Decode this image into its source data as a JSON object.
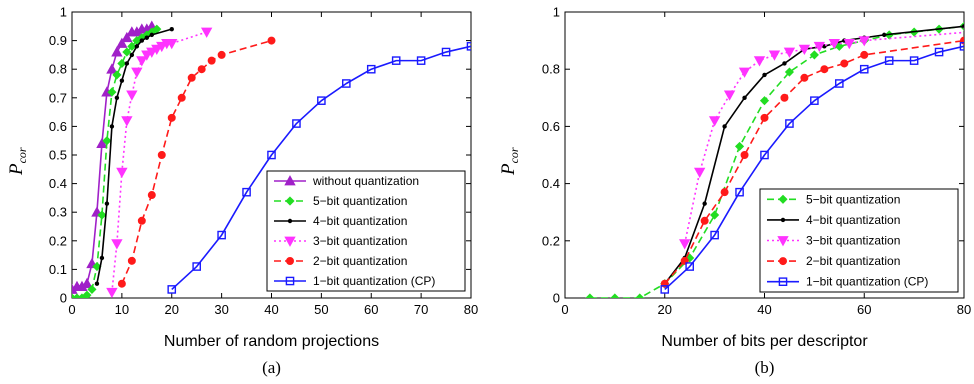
{
  "chart_data": [
    {
      "type": "line",
      "panel_label": "(a)",
      "xlabel": "Number of random projections",
      "ylabel": "P",
      "ylabel_sub": "cor",
      "xlim": [
        0,
        80
      ],
      "ylim": [
        0,
        1
      ],
      "xticks": [
        "0",
        "10",
        "20",
        "30",
        "40",
        "50",
        "60",
        "70",
        "80"
      ],
      "yticks": [
        "0",
        "0.1",
        "0.2",
        "0.3",
        "0.4",
        "0.5",
        "0.6",
        "0.7",
        "0.8",
        "0.9",
        "1"
      ],
      "grid": false,
      "legend_position": "bottom-right",
      "series": [
        {
          "name": "without quantization",
          "color": "#a020c8",
          "dash": "solid",
          "marker": "triangle-up",
          "x": [
            0,
            1,
            2,
            3,
            4,
            5,
            6,
            7,
            8,
            9,
            10,
            11,
            12,
            13,
            14,
            15,
            16
          ],
          "y": [
            0.03,
            0.04,
            0.04,
            0.05,
            0.12,
            0.3,
            0.54,
            0.72,
            0.8,
            0.86,
            0.89,
            0.91,
            0.93,
            0.93,
            0.94,
            0.94,
            0.95
          ]
        },
        {
          "name": "5−bit quantization",
          "color": "#22dd22",
          "dash": "dash",
          "marker": "diamond",
          "x": [
            0,
            1,
            2,
            3,
            4,
            5,
            6,
            7,
            8,
            9,
            10,
            11,
            12,
            13,
            14,
            15,
            16,
            17
          ],
          "y": [
            0.0,
            0.0,
            0.0,
            0.01,
            0.03,
            0.11,
            0.29,
            0.55,
            0.72,
            0.78,
            0.82,
            0.86,
            0.88,
            0.9,
            0.91,
            0.92,
            0.93,
            0.94
          ]
        },
        {
          "name": "4−bit quantization",
          "color": "#000000",
          "dash": "solid",
          "marker": "dot",
          "x": [
            5,
            6,
            7,
            8,
            9,
            10,
            11,
            12,
            13,
            14,
            15,
            16,
            20
          ],
          "y": [
            0.05,
            0.14,
            0.33,
            0.6,
            0.7,
            0.76,
            0.82,
            0.85,
            0.88,
            0.9,
            0.91,
            0.92,
            0.94
          ]
        },
        {
          "name": "3−bit quantization",
          "color": "#ff33ff",
          "dash": "dot",
          "marker": "triangle-down",
          "x": [
            8,
            9,
            10,
            11,
            12,
            13,
            14,
            15,
            16,
            17,
            18,
            19,
            20,
            27
          ],
          "y": [
            0.02,
            0.19,
            0.44,
            0.62,
            0.71,
            0.79,
            0.83,
            0.85,
            0.86,
            0.87,
            0.88,
            0.89,
            0.89,
            0.93
          ]
        },
        {
          "name": "2−bit quantization",
          "color": "#ff1a1a",
          "dash": "dash",
          "marker": "circle",
          "x": [
            10,
            12,
            14,
            16,
            18,
            20,
            22,
            24,
            26,
            28,
            30,
            40
          ],
          "y": [
            0.05,
            0.13,
            0.27,
            0.36,
            0.5,
            0.63,
            0.7,
            0.77,
            0.8,
            0.83,
            0.85,
            0.9
          ]
        },
        {
          "name": "1−bit quantization (CP)",
          "color": "#1a1aff",
          "dash": "solid",
          "marker": "square",
          "x": [
            20,
            25,
            30,
            35,
            40,
            45,
            50,
            55,
            60,
            65,
            70,
            75,
            80
          ],
          "y": [
            0.03,
            0.11,
            0.22,
            0.37,
            0.5,
            0.61,
            0.69,
            0.75,
            0.8,
            0.83,
            0.83,
            0.86,
            0.88
          ]
        }
      ]
    },
    {
      "type": "line",
      "panel_label": "(b)",
      "xlabel": "Number of bits per descriptor",
      "ylabel": "P",
      "ylabel_sub": "cor",
      "xlim": [
        0,
        80
      ],
      "ylim": [
        0,
        1
      ],
      "xticks": [
        "0",
        "20",
        "40",
        "60",
        "80"
      ],
      "yticks": [
        "0",
        "0.2",
        "0.4",
        "0.6",
        "0.8",
        "1"
      ],
      "grid": false,
      "legend_position": "bottom-right",
      "series": [
        {
          "name": "5−bit quantization",
          "color": "#22dd22",
          "dash": "dash",
          "marker": "diamond",
          "x": [
            5,
            10,
            15,
            20,
            25,
            30,
            35,
            40,
            45,
            50,
            55,
            60,
            65,
            70,
            75,
            80
          ],
          "y": [
            0.0,
            0.0,
            0.0,
            0.05,
            0.14,
            0.29,
            0.53,
            0.69,
            0.79,
            0.85,
            0.88,
            0.9,
            0.92,
            0.93,
            0.94,
            0.95
          ]
        },
        {
          "name": "4−bit quantization",
          "color": "#000000",
          "dash": "solid",
          "marker": "dot",
          "x": [
            20,
            24,
            28,
            32,
            36,
            40,
            44,
            48,
            52,
            56,
            60,
            64,
            80
          ],
          "y": [
            0.05,
            0.14,
            0.33,
            0.6,
            0.7,
            0.78,
            0.82,
            0.87,
            0.88,
            0.9,
            0.91,
            0.92,
            0.95
          ]
        },
        {
          "name": "3−bit quantization",
          "color": "#ff33ff",
          "dash": "dot",
          "marker": "triangle-down",
          "x": [
            24,
            27,
            30,
            33,
            36,
            39,
            42,
            45,
            48,
            51,
            54,
            57,
            60,
            81
          ],
          "y": [
            0.19,
            0.44,
            0.62,
            0.71,
            0.79,
            0.83,
            0.85,
            0.86,
            0.87,
            0.88,
            0.89,
            0.89,
            0.9,
            0.93
          ]
        },
        {
          "name": "2−bit quantization",
          "color": "#ff1a1a",
          "dash": "dash",
          "marker": "circle",
          "x": [
            20,
            24,
            28,
            32,
            36,
            40,
            44,
            48,
            52,
            56,
            60,
            80
          ],
          "y": [
            0.05,
            0.13,
            0.27,
            0.37,
            0.5,
            0.63,
            0.7,
            0.77,
            0.8,
            0.82,
            0.85,
            0.9
          ]
        },
        {
          "name": "1−bit quantization (CP)",
          "color": "#1a1aff",
          "dash": "solid",
          "marker": "square",
          "x": [
            20,
            25,
            30,
            35,
            40,
            45,
            50,
            55,
            60,
            65,
            70,
            75,
            80
          ],
          "y": [
            0.03,
            0.11,
            0.22,
            0.37,
            0.5,
            0.61,
            0.69,
            0.75,
            0.8,
            0.83,
            0.83,
            0.86,
            0.88
          ]
        }
      ]
    }
  ]
}
